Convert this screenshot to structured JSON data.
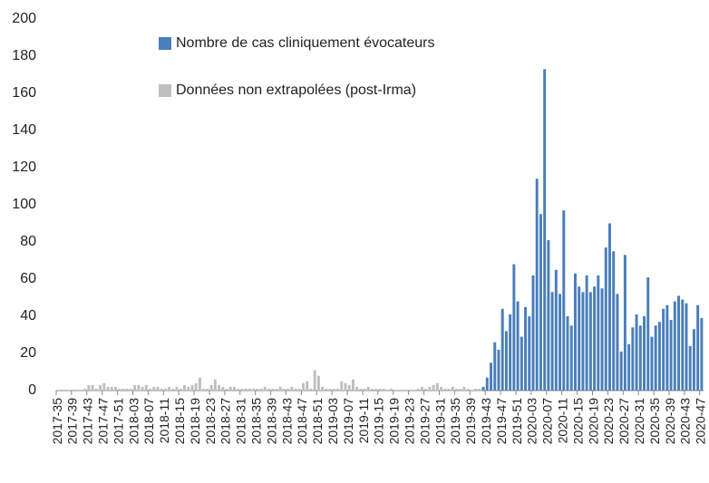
{
  "chart_data": {
    "type": "bar",
    "categories": [
      "2017-35",
      null,
      null,
      null,
      "2017-39",
      null,
      null,
      null,
      "2017-43",
      null,
      null,
      null,
      "2017-47",
      null,
      null,
      null,
      "2017-51",
      null,
      null,
      null,
      "2018-03",
      null,
      null,
      null,
      "2018-07",
      null,
      null,
      null,
      "2018-11",
      null,
      null,
      null,
      "2018-15",
      null,
      null,
      null,
      "2018-19",
      null,
      null,
      null,
      "2018-23",
      null,
      null,
      null,
      "2018-27",
      null,
      null,
      null,
      "2018-31",
      null,
      null,
      null,
      "2018-35",
      null,
      null,
      null,
      "2018-39",
      null,
      null,
      null,
      "2018-43",
      null,
      null,
      null,
      "2018-47",
      null,
      null,
      null,
      "2018-51",
      null,
      null,
      null,
      "2019-03",
      null,
      null,
      null,
      "2019-07",
      null,
      null,
      null,
      "2019-11",
      null,
      null,
      null,
      "2019-15",
      null,
      null,
      null,
      "2019-19",
      null,
      null,
      null,
      "2019-23",
      null,
      null,
      null,
      "2019-27",
      null,
      null,
      null,
      "2019-31",
      null,
      null,
      null,
      "2019-35",
      null,
      null,
      null,
      "2019-39",
      null,
      null,
      null,
      "2019-43",
      null,
      null,
      null,
      "2019-47",
      null,
      null,
      null,
      "2019-51",
      null,
      null,
      null,
      "2020-03",
      null,
      null,
      null,
      "2020-07",
      null,
      null,
      null,
      "2020-11",
      null,
      null,
      null,
      "2020-15",
      null,
      null,
      null,
      "2020-19",
      null,
      null,
      null,
      "2020-23",
      null,
      null,
      null,
      "2020-27",
      null,
      null,
      null,
      "2020-31",
      null,
      null,
      null,
      "2020-35",
      null,
      null,
      null,
      "2020-39",
      null,
      null,
      null,
      "2020-43",
      null,
      null,
      null,
      "2020-47"
    ],
    "series": [
      {
        "name": "Nombre de cas cliniquement évocateurs",
        "color": "#4a7ebb",
        "values": [
          0,
          0,
          0,
          0,
          0,
          0,
          0,
          0,
          0,
          0,
          0,
          0,
          0,
          0,
          0,
          0,
          0,
          0,
          0,
          0,
          0,
          0,
          0,
          0,
          0,
          0,
          0,
          0,
          0,
          0,
          0,
          0,
          0,
          0,
          0,
          0,
          0,
          0,
          0,
          0,
          0,
          0,
          0,
          0,
          0,
          0,
          0,
          0,
          0,
          0,
          0,
          0,
          0,
          0,
          0,
          0,
          0,
          0,
          0,
          0,
          0,
          0,
          0,
          0,
          0,
          0,
          0,
          0,
          0,
          0,
          0,
          0,
          0,
          0,
          0,
          0,
          0,
          0,
          0,
          0,
          0,
          0,
          0,
          0,
          0,
          0,
          0,
          0,
          0,
          0,
          0,
          0,
          0,
          0,
          0,
          0,
          0,
          0,
          0,
          0,
          0,
          0,
          0,
          0,
          0,
          0,
          0,
          0,
          0,
          0,
          0,
          2,
          7,
          15,
          26,
          22,
          44,
          32,
          41,
          68,
          48,
          29,
          45,
          40,
          62,
          114,
          95,
          173,
          81,
          53,
          65,
          52,
          97,
          40,
          35,
          63,
          56,
          53,
          62,
          53,
          56,
          62,
          55,
          77,
          90,
          75,
          52,
          21,
          73,
          25,
          34,
          41,
          35,
          40,
          61,
          29,
          35,
          37,
          44,
          46,
          38,
          48,
          51,
          49,
          47,
          24,
          33,
          46,
          39
        ]
      },
      {
        "name": "Données non extrapolées (post-Irma)",
        "color": "#bfbfbf",
        "values": [
          0,
          0,
          0,
          0,
          0,
          0,
          0,
          1,
          3,
          3,
          1,
          3,
          4,
          2,
          2,
          2,
          1,
          1,
          1,
          1,
          3,
          3,
          2,
          3,
          1,
          2,
          2,
          1,
          1,
          2,
          1,
          2,
          1,
          3,
          2,
          3,
          4,
          7,
          1,
          1,
          3,
          6,
          3,
          2,
          1,
          2,
          2,
          1,
          1,
          1,
          1,
          1,
          1,
          1,
          2,
          1,
          1,
          1,
          2,
          1,
          1,
          2,
          1,
          1,
          4,
          5,
          1,
          11,
          8,
          2,
          1,
          1,
          1,
          1,
          5,
          4,
          3,
          6,
          2,
          1,
          1,
          2,
          1,
          1,
          1,
          1,
          0,
          1,
          0,
          0,
          0,
          0,
          0,
          0,
          1,
          2,
          1,
          2,
          3,
          4,
          2,
          1,
          1,
          2,
          1,
          1,
          2,
          1,
          0,
          1,
          1,
          0,
          0,
          0,
          0,
          0,
          0,
          0,
          0,
          0,
          0,
          0,
          0,
          0,
          0,
          0,
          0,
          0,
          0,
          0,
          0,
          0,
          0,
          0,
          0,
          0,
          0,
          0,
          0,
          0,
          0,
          0,
          0,
          0,
          0,
          0,
          0,
          0,
          0,
          0,
          0,
          0,
          0,
          0,
          0,
          0,
          0,
          0,
          0,
          0,
          0,
          0,
          0,
          0,
          0,
          0,
          0,
          0,
          0
        ]
      }
    ],
    "ylim": [
      0,
      200
    ],
    "yticks": [
      0,
      20,
      40,
      60,
      80,
      100,
      120,
      140,
      160,
      180,
      200
    ],
    "grid": false,
    "legend": "upper left"
  }
}
